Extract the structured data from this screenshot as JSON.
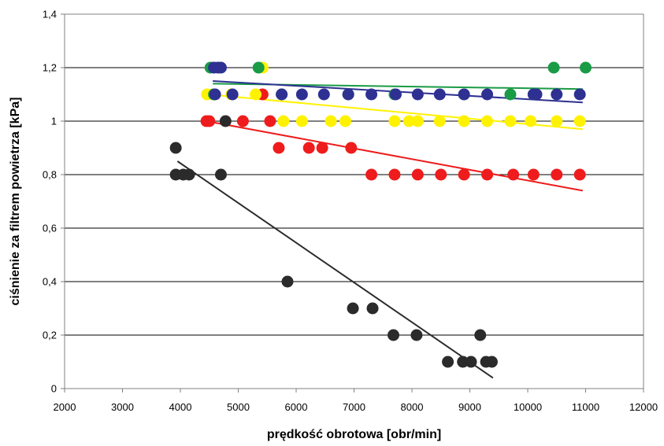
{
  "chart_data": {
    "type": "scatter",
    "title": "",
    "xlabel": "prędkość obrotowa [obr/min]",
    "ylabel": "ciśnienie za filtrem powietrza [kPa]",
    "xlim": [
      2000,
      12000
    ],
    "ylim": [
      0,
      1.4
    ],
    "x_ticks": [
      2000,
      3000,
      4000,
      5000,
      6000,
      7000,
      8000,
      9000,
      10000,
      11000,
      12000
    ],
    "y_ticks": [
      0,
      0.2,
      0.4,
      0.6,
      0.8,
      1,
      1.2,
      1.4
    ],
    "y_tick_labels": [
      "0",
      "0,2",
      "0,4",
      "0,6",
      "0,8",
      "1",
      "1,2",
      "1,4"
    ],
    "grid": "horizontal",
    "legend": "none",
    "series": [
      {
        "color": "#2b2b2b",
        "points": [
          [
            3920,
            0.9
          ],
          [
            3920,
            0.8
          ],
          [
            4050,
            0.8
          ],
          [
            4150,
            0.8
          ],
          [
            4700,
            0.8
          ],
          [
            4780,
            1.0
          ],
          [
            5850,
            0.4
          ],
          [
            6980,
            0.3
          ],
          [
            7320,
            0.3
          ],
          [
            7680,
            0.2
          ],
          [
            8080,
            0.2
          ],
          [
            8620,
            0.1
          ],
          [
            8880,
            0.1
          ],
          [
            9020,
            0.1
          ],
          [
            9180,
            0.2
          ],
          [
            9280,
            0.1
          ],
          [
            9380,
            0.1
          ]
        ],
        "trend": [
          [
            3950,
            0.85
          ],
          [
            9400,
            0.04
          ]
        ]
      },
      {
        "color": "#ee1c1c",
        "points": [
          [
            4450,
            1.0
          ],
          [
            4500,
            1.0
          ],
          [
            5080,
            1.0
          ],
          [
            5550,
            1.0
          ],
          [
            5420,
            1.1
          ],
          [
            5700,
            0.9
          ],
          [
            6220,
            0.9
          ],
          [
            6450,
            0.9
          ],
          [
            6950,
            0.9
          ],
          [
            7300,
            0.8
          ],
          [
            7700,
            0.8
          ],
          [
            8100,
            0.8
          ],
          [
            8500,
            0.8
          ],
          [
            8900,
            0.8
          ],
          [
            9300,
            0.8
          ],
          [
            9750,
            0.8
          ],
          [
            10100,
            0.8
          ],
          [
            10500,
            0.8
          ],
          [
            10900,
            0.8
          ]
        ],
        "trend": [
          [
            4450,
            1.0
          ],
          [
            10950,
            0.74
          ]
        ]
      },
      {
        "color": "#fff200",
        "points": [
          [
            4460,
            1.1
          ],
          [
            4560,
            1.1
          ],
          [
            4880,
            1.1
          ],
          [
            5300,
            1.1
          ],
          [
            5420,
            1.2
          ],
          [
            5780,
            1.0
          ],
          [
            6100,
            1.0
          ],
          [
            6600,
            1.0
          ],
          [
            6850,
            1.0
          ],
          [
            7700,
            1.0
          ],
          [
            7950,
            1.0
          ],
          [
            8100,
            1.0
          ],
          [
            8480,
            1.0
          ],
          [
            8900,
            1.0
          ],
          [
            9300,
            1.0
          ],
          [
            9700,
            1.0
          ],
          [
            10050,
            1.0
          ],
          [
            10500,
            1.0
          ],
          [
            10900,
            1.0
          ]
        ],
        "trend": [
          [
            4480,
            1.1
          ],
          [
            10950,
            0.97
          ]
        ]
      },
      {
        "color": "#1a9b46",
        "points": [
          [
            4520,
            1.2
          ],
          [
            4580,
            1.1
          ],
          [
            5350,
            1.2
          ],
          [
            5750,
            1.1
          ],
          [
            6900,
            1.1
          ],
          [
            7700,
            1.1
          ],
          [
            8900,
            1.1
          ],
          [
            9700,
            1.1
          ],
          [
            10100,
            1.1
          ],
          [
            10450,
            1.2
          ],
          [
            11000,
            1.2
          ]
        ],
        "trend": [
          [
            4560,
            1.14
          ],
          [
            10950,
            1.12
          ]
        ]
      },
      {
        "color": "#2e3192",
        "points": [
          [
            4580,
            1.2
          ],
          [
            4650,
            1.2
          ],
          [
            4700,
            1.2
          ],
          [
            4600,
            1.1
          ],
          [
            4900,
            1.1
          ],
          [
            5750,
            1.1
          ],
          [
            6100,
            1.1
          ],
          [
            6480,
            1.1
          ],
          [
            6900,
            1.1
          ],
          [
            7300,
            1.1
          ],
          [
            7720,
            1.1
          ],
          [
            8100,
            1.1
          ],
          [
            8480,
            1.1
          ],
          [
            8900,
            1.1
          ],
          [
            9300,
            1.1
          ],
          [
            10100,
            1.1
          ],
          [
            10150,
            1.1
          ],
          [
            10500,
            1.1
          ],
          [
            10900,
            1.1
          ]
        ],
        "trend": [
          [
            4560,
            1.15
          ],
          [
            10950,
            1.07
          ]
        ]
      }
    ]
  }
}
